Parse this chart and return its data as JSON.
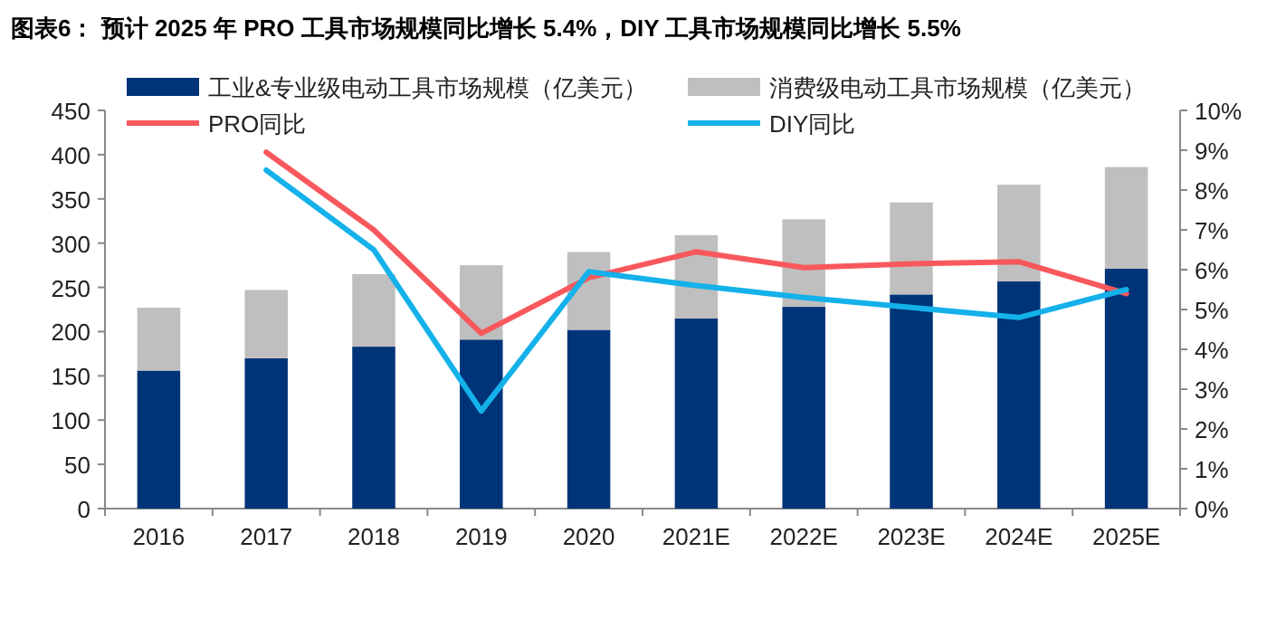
{
  "chart_data": {
    "type": "bar",
    "title": "图表6：  预计 2025 年 PRO 工具市场规模同比增长 5.4%，DIY 工具市场规模同比增长 5.5%",
    "categories": [
      "2016",
      "2017",
      "2018",
      "2019",
      "2020",
      "2021E",
      "2022E",
      "2023E",
      "2024E",
      "2025E"
    ],
    "stacked": true,
    "legend": "top",
    "grid": false,
    "ylim": [
      0,
      450
    ],
    "yticks": [
      0,
      50,
      100,
      150,
      200,
      250,
      300,
      350,
      400,
      450
    ],
    "y2lim": [
      0,
      10
    ],
    "y2ticks": [
      {
        "value": 0,
        "label": "0%"
      },
      {
        "value": 1,
        "label": "1%"
      },
      {
        "value": 2,
        "label": "2%"
      },
      {
        "value": 3,
        "label": "3%"
      },
      {
        "value": 4,
        "label": "4%"
      },
      {
        "value": 5,
        "label": "5%"
      },
      {
        "value": 6,
        "label": "6%"
      },
      {
        "value": 7,
        "label": "7%"
      },
      {
        "value": 8,
        "label": "8%"
      },
      {
        "value": 9,
        "label": "9%"
      },
      {
        "value": 10,
        "label": "10%"
      }
    ],
    "series": [
      {
        "name": "工业&专业级电动工具市场规模（亿美元）",
        "color": "#003478",
        "values": [
          156,
          170,
          183,
          191,
          202,
          215,
          228,
          242,
          257,
          271
        ]
      },
      {
        "name": "消费级电动工具市场规模（亿美元）",
        "color": "#bfbfbf",
        "values": [
          71,
          77,
          82,
          84,
          88,
          94,
          99,
          104,
          109,
          115
        ]
      },
      {
        "name": "PRO同比",
        "type": "line",
        "axis": "y2",
        "color": "#f8585c",
        "values": [
          null,
          8.95,
          7.0,
          4.4,
          5.8,
          6.45,
          6.05,
          6.15,
          6.2,
          5.4
        ]
      },
      {
        "name": "DIY同比",
        "type": "line",
        "axis": "y2",
        "color": "#14b1ea",
        "values": [
          null,
          8.5,
          6.5,
          2.45,
          5.95,
          5.6,
          5.3,
          5.05,
          4.8,
          5.5
        ]
      }
    ]
  }
}
